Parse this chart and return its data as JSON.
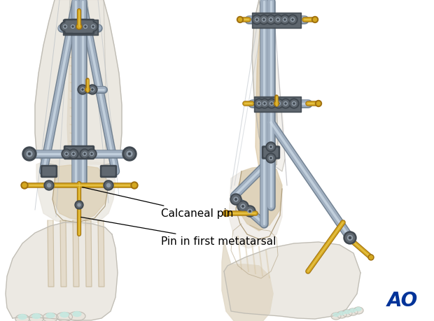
{
  "background_color": "#ffffff",
  "label1": "Calcaneal pin",
  "label2": "Pin in first metatarsal",
  "ao_text": "AO",
  "ao_color": "#003399",
  "ao_fontsize": 20,
  "label_fontsize": 11,
  "rod_color": "#a0afc0",
  "rod_highlight": "#d0dde8",
  "rod_shadow": "#708090",
  "clamp_dark": "#404850",
  "clamp_mid": "#606870",
  "clamp_light": "#909ca8",
  "pin_color": "#d4a820",
  "pin_highlight": "#f0d060",
  "bone_color": "#d8c8a8",
  "bone_outline": "#b0a080",
  "skin_color": "#e8e4dc",
  "skin_outline": "#c0bdb5",
  "tendon_color": "#d4bc90",
  "wire_color": "#b0b8c0",
  "wire_color2": "#909098"
}
